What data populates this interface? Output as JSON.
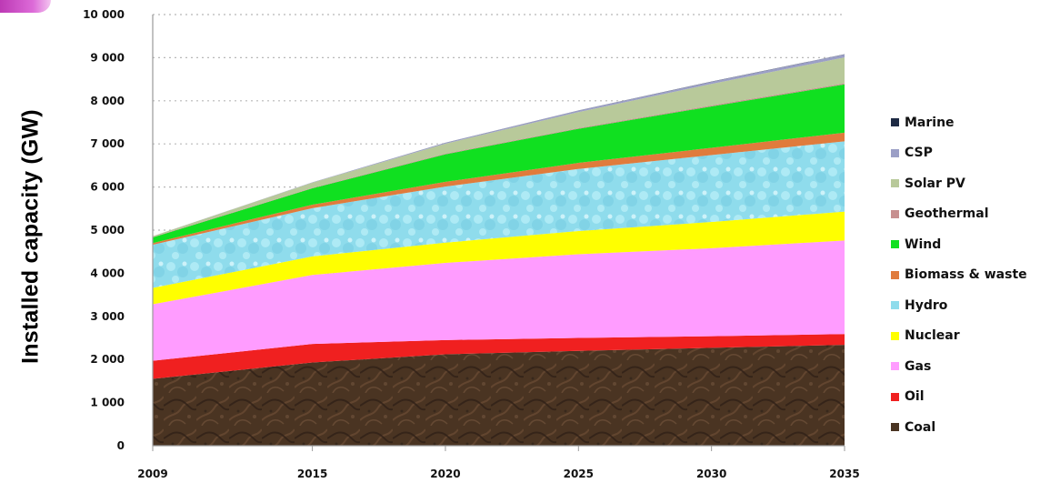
{
  "chart_data": {
    "type": "area",
    "title": "",
    "xlabel": "",
    "ylabel": "Installed capacity (GW)",
    "x": [
      2009,
      2015,
      2020,
      2025,
      2030,
      2035
    ],
    "x_ticks": [
      "2009",
      "2015",
      "2020",
      "2025",
      "2030",
      "2035"
    ],
    "ylim": [
      0,
      10000
    ],
    "y_ticks": [
      "0",
      "1 000",
      "2 000",
      "3 000",
      "4 000",
      "5 000",
      "6 000",
      "7 000",
      "8 000",
      "9 000",
      "10 000"
    ],
    "y_tick_values": [
      0,
      1000,
      2000,
      3000,
      4000,
      5000,
      6000,
      7000,
      8000,
      9000,
      10000
    ],
    "grid": "horizontal-dotted",
    "legend_position": "right",
    "series": [
      {
        "name": "Coal",
        "color": "#4a3422",
        "values": [
          1550,
          1930,
          2120,
          2200,
          2270,
          2340
        ]
      },
      {
        "name": "Oil",
        "color": "#f02020",
        "values": [
          420,
          430,
          330,
          300,
          270,
          250
        ]
      },
      {
        "name": "Gas",
        "color": "#ff9cff",
        "values": [
          1310,
          1600,
          1790,
          1940,
          2040,
          2170
        ]
      },
      {
        "name": "Nuclear",
        "color": "#ffff00",
        "values": [
          380,
          430,
          470,
          540,
          610,
          670
        ]
      },
      {
        "name": "Hydro",
        "color": "#8fdcec",
        "values": [
          1000,
          1120,
          1300,
          1440,
          1550,
          1630
        ]
      },
      {
        "name": "Biomass & waste",
        "color": "#e07b3c",
        "values": [
          40,
          80,
          110,
          140,
          170,
          200
        ]
      },
      {
        "name": "Wind",
        "color": "#10e020",
        "values": [
          130,
          380,
          640,
          790,
          960,
          1120
        ]
      },
      {
        "name": "Geothermal",
        "color": "#c78f8f",
        "values": [
          10,
          12,
          15,
          18,
          22,
          25
        ]
      },
      {
        "name": "Solar PV",
        "color": "#b8c99a",
        "values": [
          20,
          120,
          230,
          370,
          500,
          600
        ]
      },
      {
        "name": "CSP",
        "color": "#9b9fc6",
        "values": [
          1,
          8,
          20,
          35,
          50,
          70
        ]
      },
      {
        "name": "Marine",
        "color": "#1e2a44",
        "values": [
          0,
          1,
          2,
          3,
          4,
          5
        ]
      }
    ],
    "legend_order": [
      "Marine",
      "CSP",
      "Solar PV",
      "Geothermal",
      "Wind",
      "Biomass & waste",
      "Hydro",
      "Nuclear",
      "Gas",
      "Oil",
      "Coal"
    ]
  }
}
